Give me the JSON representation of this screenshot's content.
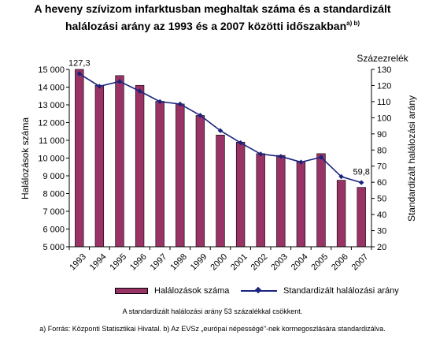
{
  "title_line_1": "A heveny szívizom infarktusban meghaltak száma és a standardizált",
  "title_line_2": "halálozási arány az 1993 és a 2007 közötti időszakban",
  "title_superscript": "a) b)",
  "right_axis_unit": "Százezrelék",
  "note": "A standardizált halálozási arány 53 százalékkal csökkent.",
  "source": "a) Forrás: Központi Statisztikai Hivatal. b) Az EVSz „európai népességé\"-nek kormegoszlására standardizálva.",
  "chart_data": {
    "type": "bar",
    "categories": [
      "1993",
      "1994",
      "1995",
      "1996",
      "1997",
      "1998",
      "1999",
      "2000",
      "2001",
      "2002",
      "2003",
      "2004",
      "2005",
      "2006",
      "2007"
    ],
    "series": [
      {
        "name": "Halálozások száma",
        "type": "bar",
        "axis": "left",
        "color": "#993366",
        "values": [
          15000,
          14100,
          14650,
          14100,
          13200,
          13050,
          12400,
          11300,
          10900,
          10250,
          10150,
          9800,
          10250,
          8750,
          8350
        ]
      },
      {
        "name": "Standardizált halálozási arány",
        "type": "line",
        "axis": "right",
        "color": "#1a237e",
        "values": [
          127.3,
          119.5,
          122.5,
          116.5,
          110,
          108.5,
          101.5,
          92,
          84.5,
          77.5,
          76,
          72.5,
          75.5,
          63.5,
          59.8
        ]
      }
    ],
    "data_labels": [
      {
        "series": "Standardizált halálozási arány",
        "category": "1993",
        "text": "127,3"
      },
      {
        "series": "Standardizált halálozási arány",
        "category": "2007",
        "text": "59,8"
      }
    ],
    "y_left": {
      "label": "Halálozások száma",
      "ylim": [
        5000,
        15000
      ],
      "ticks": [
        5000,
        6000,
        7000,
        8000,
        9000,
        10000,
        11000,
        12000,
        13000,
        14000,
        15000
      ],
      "tick_labels": [
        "5 000",
        "6 000",
        "7 000",
        "8 000",
        "9 000",
        "10 000",
        "11 000",
        "12 000",
        "13 000",
        "14 000",
        "15 000"
      ]
    },
    "y_right": {
      "label": "Standardizált halálozási arány",
      "ylim": [
        20,
        130
      ],
      "ticks": [
        20,
        30,
        40,
        50,
        60,
        70,
        80,
        90,
        100,
        110,
        120,
        130
      ],
      "tick_labels": [
        "20",
        "30",
        "40",
        "50",
        "60",
        "70",
        "80",
        "90",
        "100",
        "110",
        "120",
        "130"
      ]
    },
    "grid": false,
    "legend_position": "bottom"
  }
}
